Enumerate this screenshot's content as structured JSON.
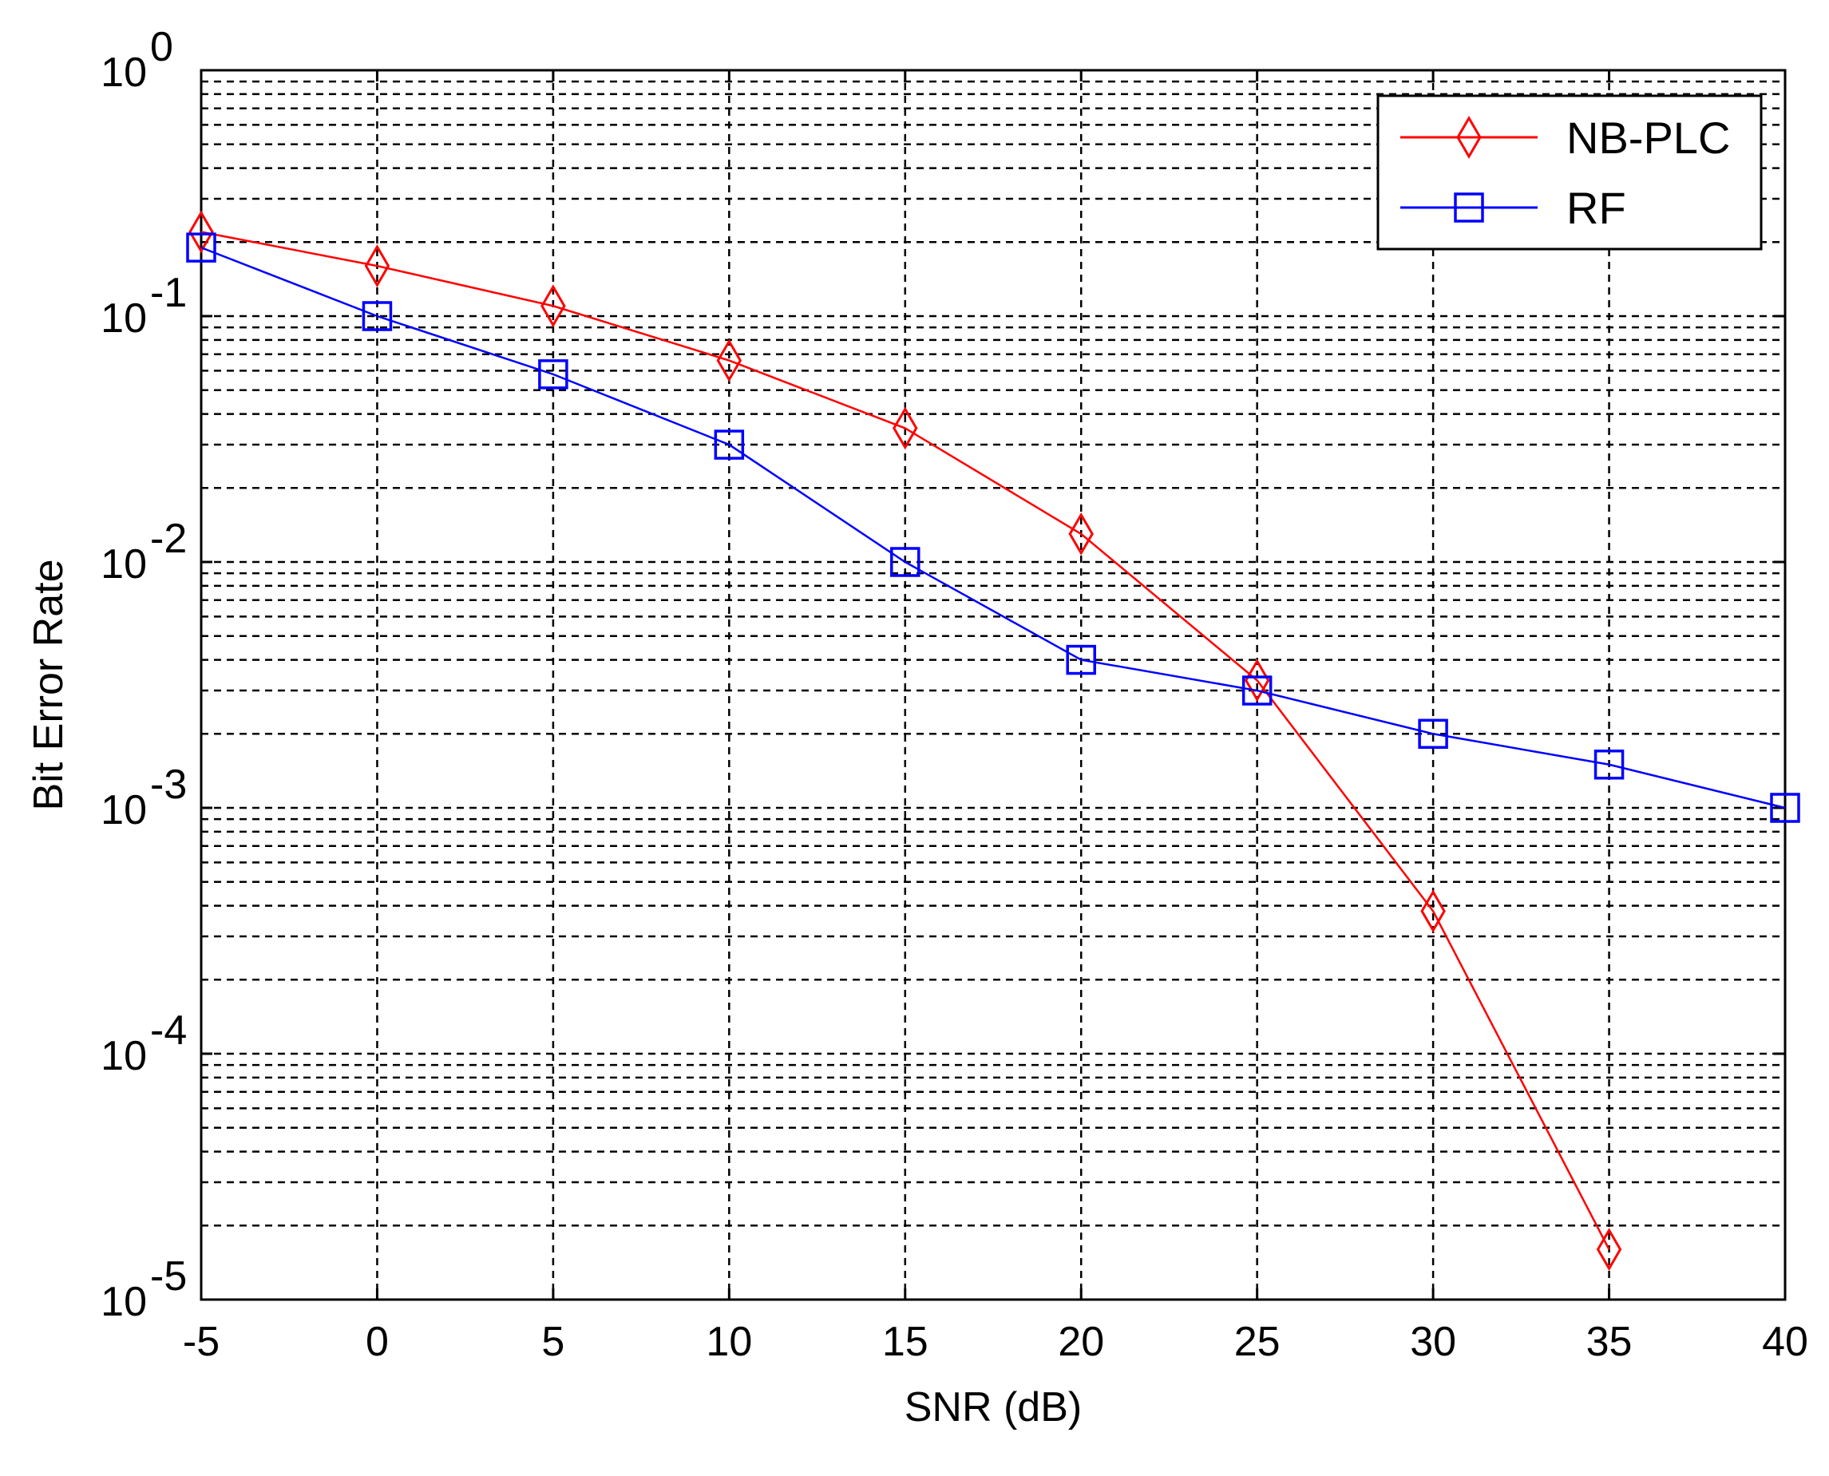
{
  "chart_data": {
    "type": "line",
    "xlabel": "SNR (dB)",
    "ylabel": "Bit Error Rate",
    "xlim": [
      -5,
      40
    ],
    "ylim": [
      1e-05,
      1
    ],
    "yscale": "log",
    "grid": true,
    "legend_position": "top-right",
    "x_ticks": [
      "-5",
      "0",
      "5",
      "10",
      "15",
      "20",
      "25",
      "30",
      "35",
      "40"
    ],
    "y_ticks": [
      {
        "base": "10",
        "exp": "0",
        "value": 1
      },
      {
        "base": "10",
        "exp": "-1",
        "value": 0.1
      },
      {
        "base": "10",
        "exp": "-2",
        "value": 0.01
      },
      {
        "base": "10",
        "exp": "-3",
        "value": 0.001
      },
      {
        "base": "10",
        "exp": "-4",
        "value": 0.0001
      },
      {
        "base": "10",
        "exp": "-5",
        "value": 1e-05
      }
    ],
    "series": [
      {
        "name": "NB-PLC",
        "color": "#ff0000",
        "marker": "diamond",
        "x": [
          -5,
          0,
          5,
          10,
          15,
          20,
          25,
          30,
          35
        ],
        "y": [
          0.22,
          0.16,
          0.11,
          0.066,
          0.035,
          0.013,
          0.0033,
          0.00038,
          1.6e-05
        ]
      },
      {
        "name": "RF",
        "color": "#0000ff",
        "marker": "square",
        "x": [
          -5,
          0,
          5,
          10,
          15,
          20,
          25,
          30,
          35,
          40
        ],
        "y": [
          0.19,
          0.1,
          0.058,
          0.03,
          0.01,
          0.004,
          0.003,
          0.002,
          0.0015,
          0.001
        ]
      }
    ]
  }
}
